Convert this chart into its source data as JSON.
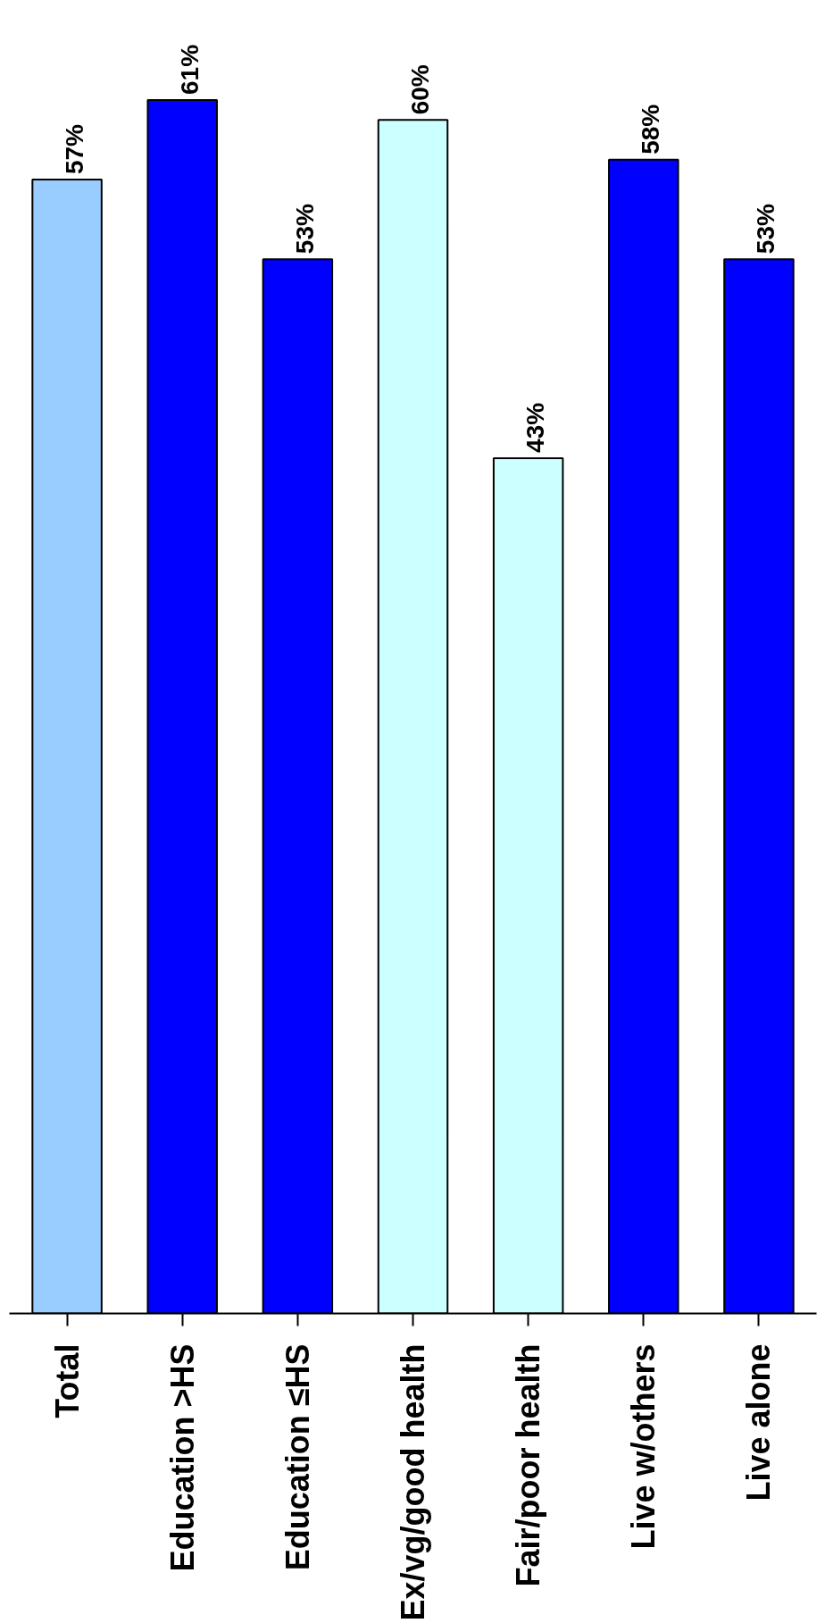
{
  "chart_data": {
    "type": "bar",
    "categories": [
      "Total",
      "Education >HS",
      "Education ≤HS",
      "Ex/vg/good health",
      "Fair/poor health",
      "Live w/others",
      "Live alone"
    ],
    "values": [
      57,
      61,
      53,
      60,
      43,
      58,
      53
    ],
    "colors": [
      "#99ccff",
      "#0000ff",
      "#0000ff",
      "#ccffff",
      "#ccffff",
      "#0000ff",
      "#0000ff"
    ],
    "value_labels": [
      "57%",
      "61%",
      "53%",
      "60%",
      "43%",
      "58%",
      "53%"
    ],
    "tick_labels": "x",
    "grid": false
  }
}
